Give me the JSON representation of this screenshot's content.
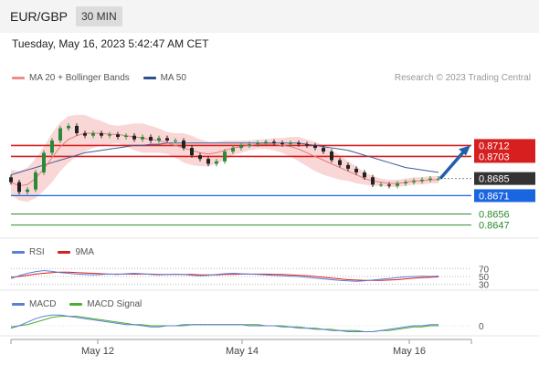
{
  "header": {
    "pair": "EUR/GBP",
    "timeframe": "30 MIN"
  },
  "datetime": "Tuesday, May 16, 2023 5:42:47 AM CET",
  "research": "Research © 2023 Trading Central",
  "colors": {
    "price_line": "#d81f1f",
    "blue_line": "#1a66e0",
    "current_bg": "#333333",
    "green_line": "#2e8b2e",
    "bollinger": "#f6b7b7",
    "ma20": "#e87a7a",
    "ma50": "#3e5c9a",
    "arrow": "#1f5fa8",
    "rsi": "#5b7fd6",
    "rsi_9ma": "#d81f1f",
    "macd": "#5b7fd6",
    "macd_signal": "#4caf2b",
    "candle_up": "#2a8a3a",
    "candle_down": "#222222"
  },
  "legend_main": [
    {
      "label": "MA 20 + Bollinger Bands",
      "color": "#f08a8a"
    },
    {
      "label": "MA 50",
      "color": "#2f4f8f"
    }
  ],
  "legend_rsi": [
    {
      "label": "RSI",
      "color": "#5b7fd6"
    },
    {
      "label": "9MA",
      "color": "#d81f1f"
    }
  ],
  "legend_macd": [
    {
      "label": "MACD",
      "color": "#5b7fd6"
    },
    {
      "label": "MACD Signal",
      "color": "#4caf2b"
    }
  ],
  "chart_data": {
    "type": "line",
    "x_labels": [
      "May 12",
      "May 14",
      "May 16"
    ],
    "ylim": [
      0.864,
      0.876
    ],
    "levels": [
      {
        "value": 0.8712,
        "label": "0.8712",
        "kind": "resistance"
      },
      {
        "value": 0.8703,
        "label": "0.8703",
        "kind": "resistance"
      },
      {
        "value": 0.8685,
        "label": "0.8685",
        "kind": "current"
      },
      {
        "value": 0.8671,
        "label": "0.8671",
        "kind": "pivot"
      },
      {
        "value": 0.8656,
        "label": "0.8656",
        "kind": "support"
      },
      {
        "value": 0.8647,
        "label": "0.8647",
        "kind": "support"
      }
    ],
    "close": [
      0.8682,
      0.8674,
      0.8676,
      0.869,
      0.8706,
      0.8716,
      0.8726,
      0.8728,
      0.8722,
      0.872,
      0.8722,
      0.872,
      0.8721,
      0.8719,
      0.872,
      0.8717,
      0.8719,
      0.8716,
      0.8718,
      0.8716,
      0.8716,
      0.871,
      0.8704,
      0.8701,
      0.8697,
      0.8699,
      0.8707,
      0.871,
      0.8712,
      0.8713,
      0.8714,
      0.8715,
      0.8714,
      0.8713,
      0.8714,
      0.8713,
      0.8712,
      0.871,
      0.8707,
      0.87,
      0.8696,
      0.8693,
      0.869,
      0.8686,
      0.868,
      0.868,
      0.8679,
      0.8681,
      0.8682,
      0.8683,
      0.8684,
      0.8685,
      0.8685
    ],
    "ma20": [
      0.8682,
      0.8679,
      0.868,
      0.8685,
      0.8693,
      0.8702,
      0.8711,
      0.8717,
      0.872,
      0.8722,
      0.8722,
      0.8722,
      0.8721,
      0.8721,
      0.872,
      0.8719,
      0.8718,
      0.8717,
      0.8716,
      0.8714,
      0.8712,
      0.871,
      0.8708,
      0.8706,
      0.8705,
      0.8706,
      0.8708,
      0.871,
      0.8711,
      0.8712,
      0.8713,
      0.8713,
      0.8713,
      0.8712,
      0.8711,
      0.8709,
      0.8706,
      0.8703,
      0.87,
      0.8697,
      0.8694,
      0.8691,
      0.8688,
      0.8685,
      0.8683,
      0.8682,
      0.8681,
      0.8681,
      0.8682,
      0.8683,
      0.8683,
      0.8684,
      0.8684
    ],
    "bollinger_width": [
      0.001,
      0.0012,
      0.0014,
      0.0016,
      0.0018,
      0.002,
      0.002,
      0.0019,
      0.0017,
      0.0015,
      0.0012,
      0.001,
      0.0008,
      0.0007,
      0.0009,
      0.0011,
      0.0012,
      0.0011,
      0.001,
      0.0009,
      0.001,
      0.0012,
      0.0012,
      0.0011,
      0.001,
      0.0009,
      0.0008,
      0.0006,
      0.0005,
      0.0004,
      0.0004,
      0.0004,
      0.0005,
      0.0006,
      0.0008,
      0.001,
      0.0011,
      0.0012,
      0.0012,
      0.0011,
      0.001,
      0.0008,
      0.0007,
      0.0005,
      0.0004,
      0.0003,
      0.0003,
      0.0003,
      0.0003,
      0.0003,
      0.0003,
      0.0003,
      0.0003
    ],
    "ma50": [
      0.8688,
      0.869,
      0.8692,
      0.8694,
      0.8696,
      0.8698,
      0.87,
      0.8702,
      0.8704,
      0.8706,
      0.8707,
      0.8708,
      0.8709,
      0.871,
      0.8711,
      0.8712,
      0.8712,
      0.8713,
      0.8713,
      0.8714,
      0.8714,
      0.8714,
      0.8714,
      0.8714,
      0.8714,
      0.8714,
      0.8714,
      0.8714,
      0.8714,
      0.8714,
      0.8714,
      0.8714,
      0.8714,
      0.8714,
      0.8714,
      0.8714,
      0.8713,
      0.8712,
      0.8711,
      0.871,
      0.8709,
      0.8708,
      0.8706,
      0.8704,
      0.8702,
      0.87,
      0.8698,
      0.8696,
      0.8694,
      0.8693,
      0.8692,
      0.8691,
      0.869
    ],
    "forecast_arrow": {
      "from": 0.8685,
      "to": 0.8712
    },
    "rsi": {
      "ticks": [
        "70",
        "50",
        "30"
      ],
      "rsi": [
        45,
        52,
        58,
        62,
        65,
        63,
        60,
        58,
        56,
        55,
        54,
        55,
        56,
        55,
        57,
        58,
        57,
        55,
        54,
        55,
        56,
        55,
        53,
        52,
        53,
        55,
        57,
        58,
        57,
        56,
        55,
        54,
        53,
        52,
        51,
        50,
        48,
        46,
        44,
        42,
        40,
        39,
        38,
        39,
        41,
        43,
        45,
        47,
        49,
        50,
        51,
        50,
        51
      ],
      "ma9": [
        48,
        50,
        53,
        56,
        58,
        60,
        61,
        61,
        60,
        59,
        58,
        57,
        56,
        56,
        56,
        56,
        56,
        56,
        55,
        55,
        55,
        55,
        55,
        54,
        54,
        54,
        55,
        55,
        56,
        56,
        56,
        56,
        55,
        55,
        54,
        53,
        52,
        50,
        48,
        46,
        44,
        42,
        41,
        40,
        40,
        40,
        41,
        42,
        44,
        46,
        47,
        48,
        49
      ]
    },
    "macd": {
      "zero_label": "0",
      "macd": [
        -2,
        0,
        3,
        6,
        8,
        9,
        9,
        8,
        7,
        6,
        5,
        4,
        3,
        2,
        1,
        1,
        0,
        -1,
        -1,
        0,
        0,
        1,
        1,
        1,
        1,
        1,
        1,
        1,
        1,
        0,
        0,
        0,
        0,
        -1,
        -1,
        -2,
        -2,
        -3,
        -3,
        -4,
        -4,
        -5,
        -5,
        -5,
        -5,
        -4,
        -3,
        -2,
        -1,
        0,
        0,
        1,
        1
      ],
      "signal": [
        -1,
        0,
        1,
        3,
        5,
        7,
        8,
        8,
        8,
        7,
        6,
        5,
        4,
        3,
        2,
        1,
        1,
        0,
        0,
        0,
        0,
        0,
        1,
        1,
        1,
        1,
        1,
        1,
        1,
        1,
        1,
        0,
        0,
        0,
        -1,
        -1,
        -2,
        -2,
        -3,
        -3,
        -4,
        -4,
        -4,
        -5,
        -5,
        -4,
        -4,
        -3,
        -2,
        -1,
        -1,
        0,
        0
      ]
    }
  }
}
